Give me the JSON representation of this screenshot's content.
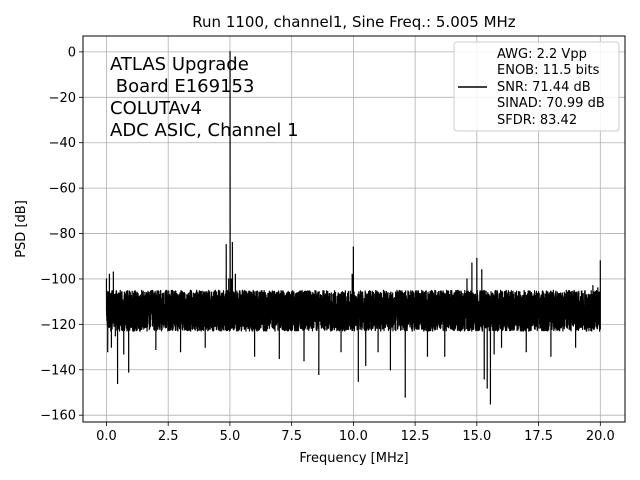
{
  "chart_data": {
    "type": "line",
    "title": "Run 1100, channel1, Sine Freq.: 5.005 MHz",
    "xlabel": "Frequency [MHz]",
    "ylabel": "PSD [dB]",
    "xlim": [
      -0.95,
      21.0
    ],
    "ylim": [
      -163,
      7
    ],
    "xticks": [
      0.0,
      2.5,
      5.0,
      7.5,
      10.0,
      12.5,
      15.0,
      17.5,
      20.0
    ],
    "xtick_labels": [
      "0.0",
      "2.5",
      "5.0",
      "7.5",
      "10.0",
      "12.5",
      "15.0",
      "17.5",
      "20.0"
    ],
    "yticks": [
      0,
      -20,
      -40,
      -60,
      -80,
      -100,
      -120,
      -140,
      -160
    ],
    "ytick_labels": [
      "0",
      "−20",
      "−40",
      "−60",
      "−80",
      "−100",
      "−120",
      "−140",
      "−160"
    ],
    "grid": true,
    "legend_position": "top-right",
    "annotation_lines": [
      "ATLAS Upgrade",
      " Board E169153",
      "COLUTAv4",
      "ADC ASIC, Channel 1"
    ],
    "legend_lines": [
      "AWG: 2.2 Vpp",
      "ENOB: 11.5 bits",
      "SNR: 71.44 dB",
      "SINAD: 70.99 dB",
      "SFDR: 83.42"
    ],
    "series": [
      {
        "color": "#000000",
        "noise_floor_db": -114,
        "points": [
          {
            "x": 0.0,
            "y": -100
          },
          {
            "x": 0.05,
            "y": -132
          },
          {
            "x": 0.12,
            "y": -98
          },
          {
            "x": 0.2,
            "y": -130
          },
          {
            "x": 0.28,
            "y": -97
          },
          {
            "x": 0.36,
            "y": -125
          },
          {
            "x": 0.45,
            "y": -146
          },
          {
            "x": 0.6,
            "y": -106
          },
          {
            "x": 0.7,
            "y": -133
          },
          {
            "x": 0.9,
            "y": -141
          },
          {
            "x": 1.2,
            "y": -108
          },
          {
            "x": 2.0,
            "y": -131
          },
          {
            "x": 3.0,
            "y": -132
          },
          {
            "x": 4.0,
            "y": -130
          },
          {
            "x": 4.55,
            "y": -109
          },
          {
            "x": 4.85,
            "y": -85
          },
          {
            "x": 4.9,
            "y": -120
          },
          {
            "x": 4.95,
            "y": -100
          },
          {
            "x": 5.005,
            "y": 0
          },
          {
            "x": 5.06,
            "y": -100
          },
          {
            "x": 5.1,
            "y": -84
          },
          {
            "x": 5.16,
            "y": -118
          },
          {
            "x": 5.22,
            "y": -98
          },
          {
            "x": 5.4,
            "y": -108
          },
          {
            "x": 6.0,
            "y": -134
          },
          {
            "x": 7.0,
            "y": -135
          },
          {
            "x": 8.0,
            "y": -136
          },
          {
            "x": 8.6,
            "y": -142
          },
          {
            "x": 9.5,
            "y": -132
          },
          {
            "x": 9.95,
            "y": -98
          },
          {
            "x": 10.0,
            "y": -86
          },
          {
            "x": 10.05,
            "y": -112
          },
          {
            "x": 10.2,
            "y": -145
          },
          {
            "x": 10.5,
            "y": -138
          },
          {
            "x": 11.0,
            "y": -132
          },
          {
            "x": 11.5,
            "y": -140
          },
          {
            "x": 12.1,
            "y": -152
          },
          {
            "x": 13.0,
            "y": -134
          },
          {
            "x": 13.7,
            "y": -134
          },
          {
            "x": 14.6,
            "y": -100
          },
          {
            "x": 14.8,
            "y": -93
          },
          {
            "x": 15.0,
            "y": -91
          },
          {
            "x": 15.2,
            "y": -96
          },
          {
            "x": 15.3,
            "y": -144
          },
          {
            "x": 15.42,
            "y": -148
          },
          {
            "x": 15.55,
            "y": -155
          },
          {
            "x": 15.7,
            "y": -133
          },
          {
            "x": 16.0,
            "y": -130
          },
          {
            "x": 17.0,
            "y": -132
          },
          {
            "x": 18.0,
            "y": -134
          },
          {
            "x": 19.0,
            "y": -130
          },
          {
            "x": 19.7,
            "y": -103
          },
          {
            "x": 19.9,
            "y": -104
          },
          {
            "x": 20.0,
            "y": -92
          }
        ]
      }
    ]
  }
}
